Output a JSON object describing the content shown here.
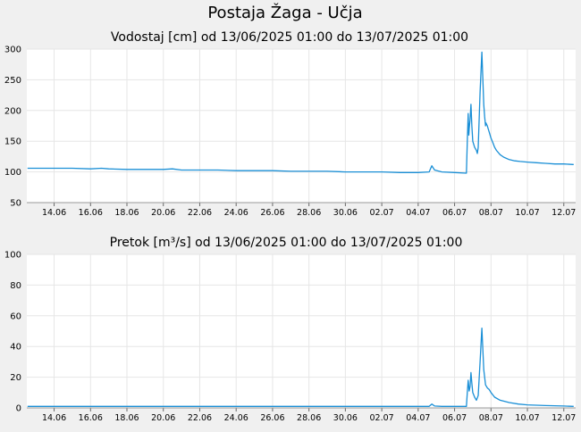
{
  "page_title": "Postaja Žaga - Učja",
  "colors": {
    "background": "#f0f0f0",
    "plot_bg": "#ffffff",
    "grid": "#e6e6e6",
    "series": "#1a8fd6"
  },
  "chart_data": [
    {
      "type": "line",
      "title": "Vodostaj [cm] od 13/06/2025 01:00 do 13/07/2025 01:00",
      "xlabel": "",
      "ylabel": "",
      "ylim": [
        50,
        300
      ],
      "yticks": [
        "50",
        "100",
        "150",
        "200",
        "250",
        "300"
      ],
      "xlim_days": [
        12.5,
        42.65
      ],
      "xticks": [
        "14.06",
        "16.06",
        "18.06",
        "20.06",
        "22.06",
        "24.06",
        "26.06",
        "28.06",
        "30.06",
        "02.07",
        "04.07",
        "06.07",
        "08.07",
        "10.07",
        "12.07"
      ],
      "grid": true,
      "x": [
        "13.06 01:00",
        "14.06",
        "15.06",
        "16.06",
        "16.6",
        "17.06",
        "18.06",
        "19.06",
        "20.06",
        "20.5",
        "21.06",
        "22.06",
        "23.06",
        "24.06",
        "25.06",
        "26.06",
        "27.06",
        "28.06",
        "29.06",
        "30.06",
        "01.07",
        "02.07",
        "03.07",
        "04.07",
        "04.6",
        "04.75",
        "04.9",
        "05.3",
        "06.07",
        "06.65",
        "06.7",
        "06.75",
        "06.78",
        "06.8",
        "06.85",
        "06.9",
        "06.95",
        "07.0",
        "07.1",
        "07.2",
        "07.25",
        "07.3",
        "07.4",
        "07.5",
        "07.6",
        "07.65",
        "07.7",
        "07.72",
        "07.75",
        "07.8",
        "07.85",
        "07.9",
        "08.0",
        "08.1",
        "08.2",
        "08.3",
        "08.5",
        "08.7",
        "09.0",
        "09.3",
        "09.6",
        "10.07",
        "10.5",
        "11.0",
        "11.5",
        "12.07",
        "12.5",
        "13.07 01:00"
      ],
      "xd": [
        12.54,
        14,
        15,
        16,
        16.6,
        17,
        18,
        19,
        20,
        20.5,
        21,
        22,
        23,
        24,
        25,
        26,
        27,
        28,
        29,
        30,
        31,
        32,
        33,
        34,
        34.6,
        34.75,
        34.9,
        35.3,
        36,
        36.65,
        36.7,
        36.75,
        36.78,
        36.8,
        36.85,
        36.9,
        36.95,
        37,
        37.1,
        37.2,
        37.25,
        37.3,
        37.4,
        37.5,
        37.6,
        37.65,
        37.7,
        37.72,
        37.75,
        37.8,
        37.85,
        37.9,
        38,
        38.1,
        38.2,
        38.3,
        38.5,
        38.7,
        39,
        39.3,
        39.6,
        40,
        40.5,
        41,
        41.5,
        42,
        42.5,
        42.54
      ],
      "values": [
        106,
        106,
        106,
        105,
        106,
        105,
        104,
        104,
        104,
        105,
        103,
        103,
        103,
        102,
        102,
        102,
        101,
        101,
        101,
        100,
        100,
        100,
        99,
        99,
        100,
        110,
        103,
        100,
        99,
        98,
        150,
        195,
        160,
        170,
        185,
        210,
        175,
        150,
        140,
        135,
        130,
        140,
        230,
        295,
        210,
        190,
        175,
        180,
        178,
        175,
        170,
        165,
        155,
        148,
        140,
        135,
        128,
        124,
        120,
        118,
        117,
        116,
        115,
        114,
        113,
        113,
        112,
        112
      ]
    },
    {
      "type": "line",
      "title": "Pretok [m³/s] od 13/06/2025 01:00 do 13/07/2025 01:00",
      "xlabel": "",
      "ylabel": "",
      "ylim": [
        0,
        100
      ],
      "yticks": [
        "0",
        "20",
        "40",
        "60",
        "80",
        "100"
      ],
      "xlim_days": [
        12.5,
        42.65
      ],
      "xticks": [
        "14.06",
        "16.06",
        "18.06",
        "20.06",
        "22.06",
        "24.06",
        "26.06",
        "28.06",
        "30.06",
        "02.07",
        "04.07",
        "06.07",
        "08.07",
        "10.07",
        "12.07"
      ],
      "grid": true,
      "x": [
        "13.06 01:00",
        "16.06",
        "20.06",
        "24.06",
        "28.06",
        "02.07",
        "04.07",
        "04.6",
        "04.75",
        "04.9",
        "05.3",
        "06.07",
        "06.65",
        "06.7",
        "06.75",
        "06.8",
        "06.85",
        "06.9",
        "06.95",
        "07.0",
        "07.1",
        "07.2",
        "07.3",
        "07.4",
        "07.5",
        "07.6",
        "07.7",
        "07.8",
        "07.9",
        "08.0",
        "08.2",
        "08.5",
        "09.0",
        "09.5",
        "10.0",
        "11.0",
        "12.07",
        "13.07 01:00"
      ],
      "xd": [
        12.54,
        16,
        20,
        24,
        28,
        32,
        34,
        34.6,
        34.75,
        34.9,
        35.3,
        36,
        36.65,
        36.7,
        36.75,
        36.8,
        36.85,
        36.9,
        36.95,
        37,
        37.1,
        37.2,
        37.3,
        37.4,
        37.5,
        37.6,
        37.7,
        37.8,
        37.9,
        38,
        38.2,
        38.5,
        39,
        39.5,
        40,
        41,
        42,
        42.54
      ],
      "values": [
        1,
        1,
        1,
        1,
        1,
        1,
        1,
        1,
        2.5,
        1.2,
        1,
        1,
        1,
        10,
        18,
        11,
        14,
        23,
        16,
        10,
        7,
        5,
        8,
        30,
        52,
        25,
        15,
        13,
        12,
        10,
        7,
        5,
        3.5,
        2.5,
        2,
        1.5,
        1.2,
        1
      ]
    }
  ]
}
